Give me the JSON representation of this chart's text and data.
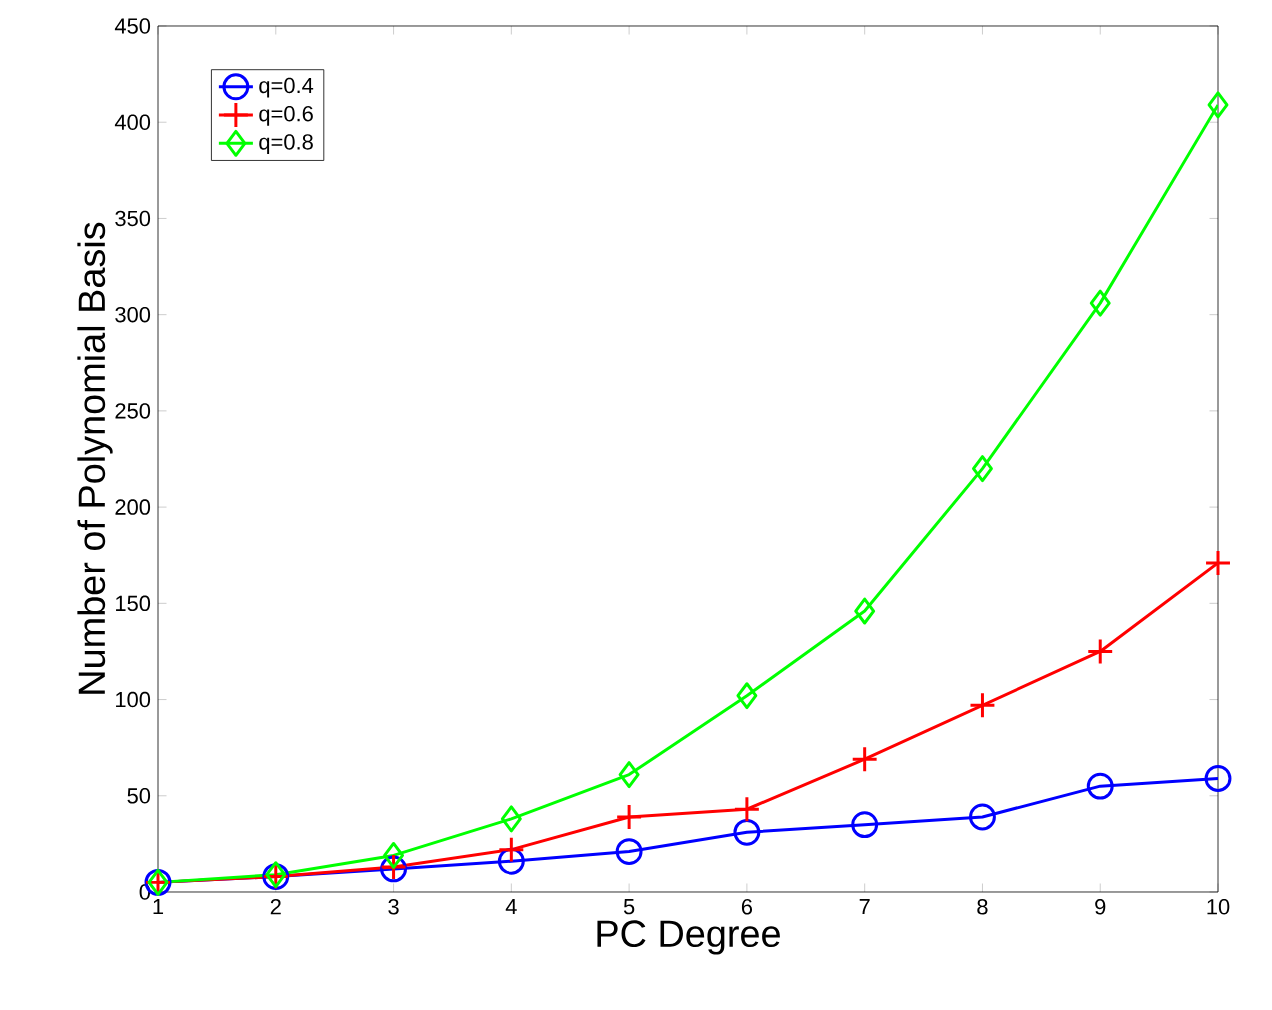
{
  "chart_data": {
    "type": "line",
    "xlabel": "PC Degree",
    "ylabel": "Number of Polynomial Basis",
    "x": [
      1,
      2,
      3,
      4,
      5,
      6,
      7,
      8,
      9,
      10
    ],
    "series": [
      {
        "name": "q=0.4",
        "color": "#0000ff",
        "marker": "circle",
        "values": [
          5,
          8,
          12,
          16,
          21,
          31,
          35,
          39,
          55,
          59
        ]
      },
      {
        "name": "q=0.6",
        "color": "#ff0000",
        "marker": "cross",
        "values": [
          5,
          8,
          13,
          22,
          39,
          43,
          69,
          97,
          125,
          171
        ]
      },
      {
        "name": "q=0.8",
        "color": "#00ff00",
        "marker": "diamond",
        "values": [
          5,
          9,
          19,
          38,
          61,
          102,
          146,
          220,
          306,
          409
        ]
      }
    ],
    "xlim": [
      1,
      10
    ],
    "xticks": [
      1,
      2,
      3,
      4,
      5,
      6,
      7,
      8,
      9,
      10
    ],
    "ylim": [
      0,
      450
    ],
    "yticks": [
      0,
      50,
      100,
      150,
      200,
      250,
      300,
      350,
      400,
      450
    ],
    "grid": false,
    "legend": "top left",
    "line_style": "solid"
  }
}
